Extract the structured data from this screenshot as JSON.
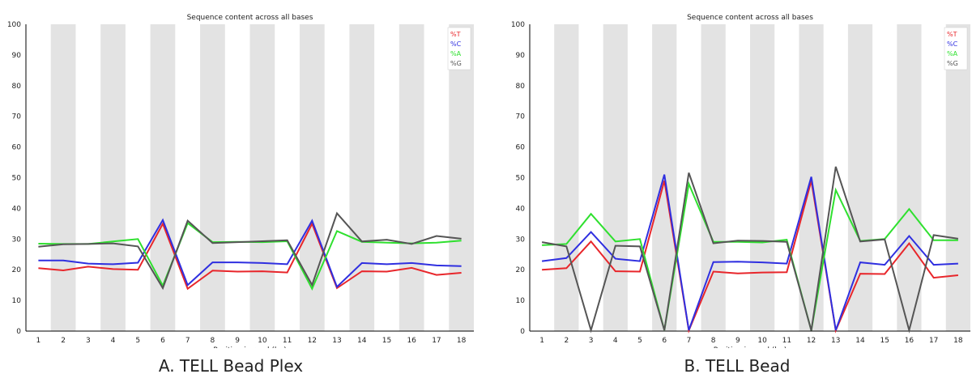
{
  "chart_data": [
    {
      "type": "line",
      "caption": "A. TELL Bead Plex",
      "title": "Sequence content across all bases",
      "xlabel": "Position in read (bp)",
      "ylabel": "",
      "ylim": [
        0,
        100
      ],
      "yticks": [
        0,
        10,
        20,
        30,
        40,
        50,
        60,
        70,
        80,
        90,
        100
      ],
      "x": [
        "1",
        "2",
        "3",
        "4",
        "5",
        "6",
        "7",
        "8",
        "9",
        "10",
        "11",
        "12",
        "13",
        "14",
        "15",
        "16",
        "17",
        "18"
      ],
      "grid": "alternating vertical bands",
      "legend_position": "top-right",
      "series": [
        {
          "name": "%T",
          "color": "#e8262b",
          "values": [
            20.5,
            19.8,
            21.0,
            20.2,
            20.0,
            35.0,
            13.8,
            19.7,
            19.4,
            19.5,
            19.1,
            35.0,
            14.0,
            19.5,
            19.4,
            20.6,
            18.3,
            19.0
          ]
        },
        {
          "name": "%C",
          "color": "#2f2fe0",
          "values": [
            23.0,
            23.0,
            22.0,
            21.8,
            22.3,
            36.2,
            15.0,
            22.4,
            22.4,
            22.2,
            21.8,
            36.0,
            14.4,
            22.2,
            21.8,
            22.2,
            21.4,
            21.2
          ]
        },
        {
          "name": "%A",
          "color": "#2fe02f",
          "values": [
            28.5,
            28.4,
            28.4,
            29.2,
            30.0,
            14.8,
            35.2,
            29.0,
            29.1,
            29.0,
            29.3,
            13.8,
            32.6,
            29.1,
            28.8,
            28.6,
            28.8,
            29.5
          ]
        },
        {
          "name": "%G",
          "color": "#555555",
          "values": [
            27.5,
            28.3,
            28.4,
            28.6,
            27.6,
            14.0,
            36.0,
            28.7,
            29.0,
            29.3,
            29.6,
            15.0,
            38.4,
            29.2,
            29.8,
            28.4,
            31.0,
            30.1
          ]
        }
      ]
    },
    {
      "type": "line",
      "caption": "B. TELL Bead",
      "title": "Sequence content across all bases",
      "xlabel": "Position in read (bp)",
      "ylabel": "",
      "ylim": [
        0,
        100
      ],
      "yticks": [
        0,
        10,
        20,
        30,
        40,
        50,
        60,
        70,
        80,
        90,
        100
      ],
      "x": [
        "1",
        "2",
        "3",
        "4",
        "5",
        "6",
        "7",
        "8",
        "9",
        "10",
        "11",
        "12",
        "13",
        "14",
        "15",
        "16",
        "17",
        "18"
      ],
      "grid": "alternating vertical bands",
      "legend_position": "top-right",
      "series": [
        {
          "name": "%T",
          "color": "#e8262b",
          "values": [
            20.0,
            20.5,
            29.2,
            19.5,
            19.4,
            49.0,
            0.2,
            19.4,
            18.8,
            19.1,
            19.2,
            49.0,
            0.2,
            18.7,
            18.6,
            28.6,
            17.4,
            18.2
          ]
        },
        {
          "name": "%C",
          "color": "#2f2fe0",
          "values": [
            22.8,
            23.8,
            32.3,
            23.6,
            22.8,
            51.0,
            0.3,
            22.5,
            22.6,
            22.4,
            22.0,
            50.3,
            0.3,
            22.4,
            21.6,
            31.0,
            21.6,
            22.0
          ]
        },
        {
          "name": "%A",
          "color": "#2fe02f",
          "values": [
            28.0,
            28.4,
            38.2,
            29.2,
            30.0,
            0.3,
            48.0,
            29.1,
            29.1,
            28.9,
            29.8,
            0.2,
            46.0,
            29.4,
            30.0,
            39.8,
            29.6,
            29.6
          ]
        },
        {
          "name": "%G",
          "color": "#555555",
          "values": [
            29.0,
            27.6,
            0.3,
            27.8,
            27.6,
            0.3,
            51.6,
            28.6,
            29.5,
            29.4,
            29.1,
            0.2,
            53.6,
            29.2,
            29.9,
            0.3,
            31.3,
            30.1
          ]
        }
      ]
    }
  ]
}
